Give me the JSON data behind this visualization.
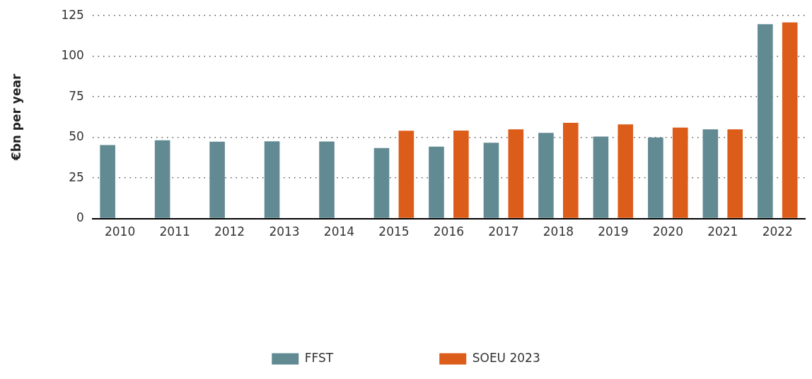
{
  "chart_data": {
    "type": "bar",
    "ylabel": "€bn per year",
    "categories": [
      "2010",
      "2011",
      "2012",
      "2013",
      "2014",
      "2015",
      "2016",
      "2017",
      "2018",
      "2019",
      "2020",
      "2021",
      "2022"
    ],
    "series": [
      {
        "name": "FFST",
        "color": "#628a93",
        "values": [
          45.3,
          48.2,
          47.3,
          47.6,
          47.4,
          43.4,
          44.3,
          46.7,
          52.8,
          50.5,
          49.9,
          54.9,
          119.8
        ]
      },
      {
        "name": "SOEU 2023",
        "color": "#dc5c19",
        "values": [
          null,
          null,
          null,
          null,
          null,
          54.1,
          54.2,
          54.9,
          59.0,
          58.0,
          56.0,
          54.9,
          120.8
        ]
      }
    ],
    "ylim": [
      0,
      125
    ],
    "yticks": [
      0,
      25,
      50,
      75,
      100,
      125
    ],
    "grid": "y",
    "legend": "bottom"
  }
}
